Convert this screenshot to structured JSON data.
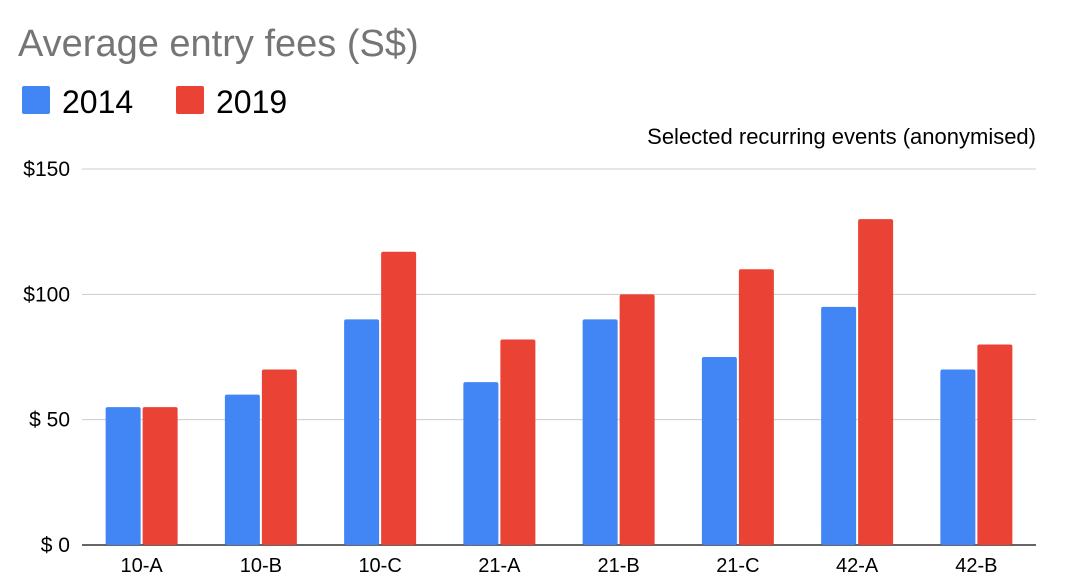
{
  "chart_data": {
    "type": "bar",
    "title": "Average entry fees (S$)",
    "subtitle": "Selected recurring events (anonymised)",
    "categories": [
      "10-A",
      "10-B",
      "10-C",
      "21-A",
      "21-B",
      "21-C",
      "42-A",
      "42-B"
    ],
    "series": [
      {
        "name": "2014",
        "color": "#4285f4",
        "values": [
          55,
          60,
          90,
          65,
          90,
          75,
          95,
          70
        ]
      },
      {
        "name": "2019",
        "color": "#ea4335",
        "values": [
          55,
          70,
          117,
          82,
          100,
          110,
          130,
          80
        ]
      }
    ],
    "ylim": [
      0,
      150
    ],
    "yticks": [
      0,
      50,
      100,
      150
    ],
    "ytick_labels": [
      "$ 0",
      "$ 50",
      "$100",
      "$150"
    ],
    "grid": true,
    "legend_position": "top-left"
  }
}
